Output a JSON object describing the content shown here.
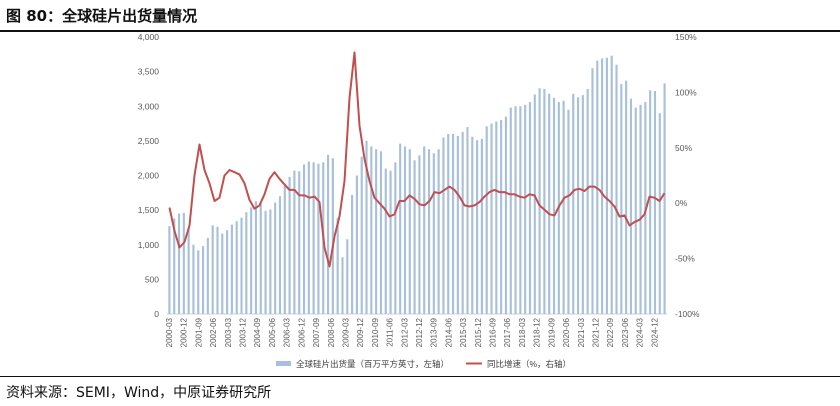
{
  "title": "图 80：全球硅片出货量情况",
  "source": "资料来源：SEMI，Wind，中原证券研究所",
  "chart_data": {
    "type": "bar",
    "left_axis": {
      "min": 0,
      "max": 4000,
      "ticks": [
        "0",
        "500",
        "1,000",
        "1,500",
        "2,000",
        "2,500",
        "3,000",
        "3,500",
        "4,000"
      ],
      "tick_values": [
        0,
        500,
        1000,
        1500,
        2000,
        2500,
        3000,
        3500,
        4000
      ]
    },
    "right_axis": {
      "min": -100,
      "max": 150,
      "ticks": [
        "-100%",
        "-50%",
        "0%",
        "50%",
        "100%",
        "150%"
      ],
      "tick_values": [
        -100,
        -50,
        0,
        50,
        100,
        150
      ]
    },
    "x_labels": [
      "2000-03",
      "2000-12",
      "2001-09",
      "2002-06",
      "2003-03",
      "2003-12",
      "2004-09",
      "2005-06",
      "2006-03",
      "2006-12",
      "2007-09",
      "2008-06",
      "2009-03",
      "2009-12",
      "2010-09",
      "2011-06",
      "2012-03",
      "2012-12",
      "2013-09",
      "2014-06",
      "2015-03",
      "2015-12",
      "2016-09",
      "2017-06",
      "2018-03",
      "2018-12",
      "2019-09",
      "2020-06",
      "2021-03",
      "2021-12",
      "2022-09",
      "2023-06",
      "2024-03",
      "2024-12"
    ],
    "legend": [
      "全球硅片出货量（百万平方英寸，左轴）",
      "同比增速（%，右轴）"
    ],
    "series": [
      {
        "name": "全球硅片出货量（百万平方英寸，左轴）",
        "type": "bar",
        "color": "#a9c0dc",
        "values": [
          1270,
          1380,
          1450,
          1460,
          1230,
          1000,
          920,
          980,
          1100,
          1280,
          1260,
          1160,
          1210,
          1290,
          1340,
          1390,
          1470,
          1540,
          1630,
          1600,
          1490,
          1510,
          1610,
          1700,
          1850,
          1980,
          2070,
          2060,
          2160,
          2200,
          2190,
          2170,
          2190,
          2300,
          2250,
          1390,
          820,
          1080,
          1720,
          2000,
          2270,
          2500,
          2420,
          2380,
          2350,
          2100,
          2070,
          2190,
          2460,
          2420,
          2380,
          2220,
          2290,
          2420,
          2380,
          2320,
          2380,
          2550,
          2600,
          2600,
          2570,
          2630,
          2700,
          2560,
          2510,
          2530,
          2710,
          2750,
          2780,
          2800,
          2850,
          2980,
          3000,
          3000,
          3020,
          3060,
          3170,
          3260,
          3250,
          3180,
          3120,
          3060,
          3080,
          2950,
          3180,
          3130,
          3160,
          3250,
          3550,
          3660,
          3690,
          3700,
          3730,
          3600,
          3320,
          3370,
          3110,
          2980,
          3020,
          3060,
          3230,
          3220,
          2900,
          3330
        ]
      },
      {
        "name": "同比增速（%，右轴）",
        "type": "line",
        "color": "#c0504d",
        "values": [
          -4,
          -25,
          -40,
          -35,
          -20,
          25,
          53,
          30,
          18,
          2,
          5,
          25,
          30,
          28,
          26,
          18,
          3,
          -5,
          -2,
          8,
          22,
          28,
          22,
          17,
          12,
          12,
          7,
          7,
          5,
          6,
          1,
          -40,
          -57,
          -30,
          -12,
          20,
          95,
          136,
          70,
          40,
          20,
          5,
          0,
          -5,
          -12,
          -10,
          2,
          2,
          7,
          4,
          -1,
          -2,
          2,
          10,
          9,
          12,
          15,
          12,
          6,
          -2,
          -3,
          -2,
          1,
          6,
          10,
          12,
          10,
          10,
          8,
          8,
          6,
          5,
          8,
          7,
          -2,
          -6,
          -10,
          -11,
          -2,
          5,
          7,
          12,
          13,
          11,
          15,
          15,
          12,
          6,
          2,
          -3,
          -12,
          -11,
          -20,
          -17,
          -15,
          -10,
          6,
          5,
          2,
          9
        ]
      }
    ]
  }
}
